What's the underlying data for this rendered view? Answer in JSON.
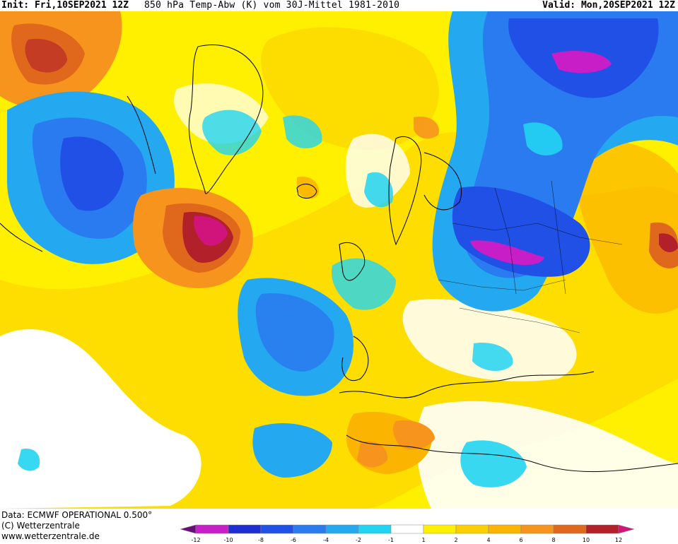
{
  "header": {
    "init": "Init: Fri,10SEP2021 12Z",
    "title": "850 hPa Temp-Abw (K) vom 30J-Mittel 1981-2010",
    "valid": "Valid: Mon,20SEP2021 12Z"
  },
  "credits": {
    "data_source": "Data: ECMWF OPERATIONAL 0.500°",
    "copyright": "(C) Wetterzentrale",
    "website": "www.wetterzentrale.de"
  },
  "legend": {
    "ticks": [
      "-12",
      "-10",
      "-8",
      "-6",
      "-4",
      "-2",
      "-1",
      "1",
      "2",
      "4",
      "6",
      "8",
      "10",
      "12"
    ],
    "colors": [
      "#6a0d7a",
      "#c81ec8",
      "#1e2ed2",
      "#2050e6",
      "#2a7af0",
      "#24a8f0",
      "#22d4f2",
      "#ffffff",
      "#fff000",
      "#fcd000",
      "#fbb400",
      "#f7941e",
      "#e0681c",
      "#b2202a",
      "#d0147c"
    ]
  }
}
